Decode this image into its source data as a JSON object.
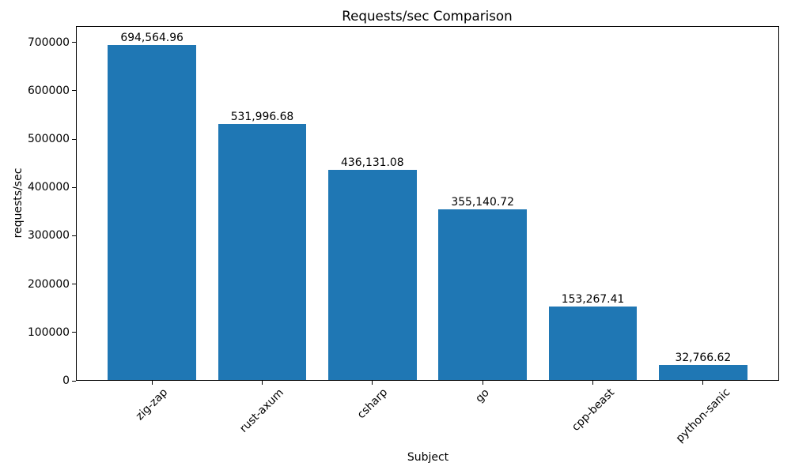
{
  "chart_data": {
    "type": "bar",
    "title": "Requests/sec Comparison",
    "xlabel": "Subject",
    "ylabel": "requests/sec",
    "categories": [
      "zig-zap",
      "rust-axum",
      "csharp",
      "go",
      "cpp-beast",
      "python-sanic"
    ],
    "values": [
      694564.96,
      531996.68,
      436131.08,
      355140.72,
      153267.41,
      32766.62
    ],
    "value_labels": [
      "694,564.96",
      "531,996.68",
      "436,131.08",
      "355,140.72",
      "153,267.41",
      "32,766.62"
    ],
    "yticks": [
      0,
      100000,
      200000,
      300000,
      400000,
      500000,
      600000,
      700000
    ],
    "ytick_labels": [
      "0",
      "100000",
      "200000",
      "300000",
      "400000",
      "500000",
      "600000",
      "700000"
    ],
    "ylim": [
      0,
      734000
    ],
    "bar_color": "#1f77b4",
    "text_color": "#000000",
    "grid": false,
    "legend_position": "none"
  }
}
